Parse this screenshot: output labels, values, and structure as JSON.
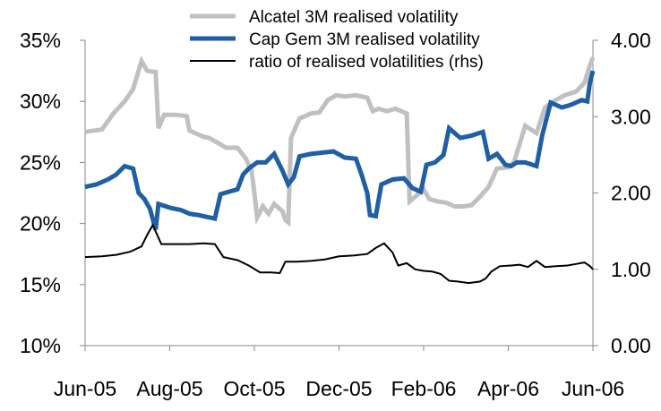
{
  "chart_data": {
    "type": "line",
    "x_ticks": [
      "Jun-05",
      "Aug-05",
      "Oct-05",
      "Dec-05",
      "Feb-06",
      "Apr-06",
      "Jun-06"
    ],
    "left_axis": {
      "ylim": [
        0.1,
        0.35
      ],
      "ticks": [
        0.1,
        0.15,
        0.2,
        0.25,
        0.3,
        0.35
      ],
      "tick_labels": [
        "10%",
        "15%",
        "20%",
        "25%",
        "30%",
        "35%"
      ]
    },
    "right_axis": {
      "ylim": [
        0.0,
        4.0
      ],
      "ticks": [
        0.0,
        1.0,
        2.0,
        3.0,
        4.0
      ],
      "tick_labels": [
        "0.00",
        "1.00",
        "2.00",
        "3.00",
        "4.00"
      ]
    },
    "grid": false,
    "legend_position": "top-center",
    "series": [
      {
        "name": "Alcatel 3M realised volatility",
        "axis": "left",
        "color": "#c0c0c0",
        "points": [
          [
            "Jun-05",
            0.275
          ],
          [
            0.3,
            0.277
          ],
          [
            0.5,
            0.29
          ],
          [
            0.7,
            0.3
          ],
          [
            0.85,
            0.31
          ],
          [
            1.0,
            0.333
          ],
          [
            1.1,
            0.325
          ],
          [
            1.25,
            0.324
          ],
          [
            1.3,
            0.278
          ],
          [
            1.4,
            0.289
          ],
          [
            1.6,
            0.289
          ],
          [
            1.8,
            0.288
          ],
          [
            1.85,
            0.276
          ],
          [
            2.0,
            0.273
          ],
          [
            2.1,
            0.271
          ],
          [
            2.2,
            0.27
          ],
          [
            2.35,
            0.266
          ],
          [
            2.5,
            0.262
          ],
          [
            2.7,
            0.262
          ],
          [
            2.85,
            0.253
          ],
          [
            2.95,
            0.243
          ],
          [
            3.0,
            0.225
          ],
          [
            3.05,
            0.205
          ],
          [
            3.15,
            0.214
          ],
          [
            3.25,
            0.208
          ],
          [
            3.35,
            0.216
          ],
          [
            3.5,
            0.21
          ],
          [
            3.55,
            0.203
          ],
          [
            3.6,
            0.201
          ],
          [
            3.65,
            0.27
          ],
          [
            3.8,
            0.286
          ],
          [
            4.0,
            0.29
          ],
          [
            4.15,
            0.291
          ],
          [
            4.3,
            0.301
          ],
          [
            4.45,
            0.305
          ],
          [
            4.6,
            0.304
          ],
          [
            4.8,
            0.305
          ],
          [
            5.0,
            0.303
          ],
          [
            5.1,
            0.292
          ],
          [
            5.2,
            0.294
          ],
          [
            5.35,
            0.292
          ],
          [
            5.5,
            0.294
          ],
          [
            5.6,
            0.292
          ],
          [
            5.7,
            0.29
          ],
          [
            5.75,
            0.218
          ],
          [
            5.85,
            0.222
          ],
          [
            6.0,
            0.228
          ],
          [
            6.1,
            0.22
          ],
          [
            6.25,
            0.218
          ],
          [
            6.4,
            0.217
          ],
          [
            6.55,
            0.214
          ],
          [
            6.7,
            0.214
          ],
          [
            6.85,
            0.215
          ],
          [
            7.0,
            0.222
          ],
          [
            7.15,
            0.23
          ],
          [
            7.3,
            0.245
          ],
          [
            7.5,
            0.246
          ],
          [
            7.6,
            0.25
          ],
          [
            7.8,
            0.28
          ],
          [
            8.0,
            0.274
          ],
          [
            8.15,
            0.295
          ],
          [
            8.3,
            0.3
          ],
          [
            8.5,
            0.305
          ],
          [
            8.7,
            0.308
          ],
          [
            8.85,
            0.315
          ],
          [
            8.95,
            0.33
          ],
          [
            9.0,
            0.336
          ]
        ]
      },
      {
        "name": "Cap Gem 3M realised volatility",
        "axis": "left",
        "color": "#1f5fa6",
        "points": [
          [
            "Jun-05",
            0.23
          ],
          [
            0.2,
            0.232
          ],
          [
            0.4,
            0.236
          ],
          [
            0.55,
            0.24
          ],
          [
            0.7,
            0.247
          ],
          [
            0.85,
            0.245
          ],
          [
            0.95,
            0.225
          ],
          [
            1.05,
            0.22
          ],
          [
            1.15,
            0.212
          ],
          [
            1.25,
            0.195
          ],
          [
            1.3,
            0.216
          ],
          [
            1.5,
            0.213
          ],
          [
            1.7,
            0.211
          ],
          [
            1.85,
            0.208
          ],
          [
            2.0,
            0.207
          ],
          [
            2.2,
            0.205
          ],
          [
            2.3,
            0.204
          ],
          [
            2.4,
            0.224
          ],
          [
            2.55,
            0.226
          ],
          [
            2.7,
            0.228
          ],
          [
            2.8,
            0.24
          ],
          [
            2.9,
            0.245
          ],
          [
            3.05,
            0.25
          ],
          [
            3.2,
            0.25
          ],
          [
            3.35,
            0.257
          ],
          [
            3.5,
            0.243
          ],
          [
            3.6,
            0.232
          ],
          [
            3.7,
            0.238
          ],
          [
            3.8,
            0.255
          ],
          [
            4.0,
            0.257
          ],
          [
            4.2,
            0.258
          ],
          [
            4.4,
            0.259
          ],
          [
            4.6,
            0.254
          ],
          [
            4.8,
            0.253
          ],
          [
            4.9,
            0.24
          ],
          [
            5.0,
            0.225
          ],
          [
            5.05,
            0.207
          ],
          [
            5.15,
            0.206
          ],
          [
            5.25,
            0.232
          ],
          [
            5.45,
            0.236
          ],
          [
            5.65,
            0.237
          ],
          [
            5.8,
            0.229
          ],
          [
            5.95,
            0.226
          ],
          [
            6.05,
            0.248
          ],
          [
            6.2,
            0.25
          ],
          [
            6.35,
            0.256
          ],
          [
            6.45,
            0.278
          ],
          [
            6.65,
            0.27
          ],
          [
            6.85,
            0.272
          ],
          [
            7.05,
            0.275
          ],
          [
            7.15,
            0.253
          ],
          [
            7.3,
            0.257
          ],
          [
            7.45,
            0.248
          ],
          [
            7.55,
            0.247
          ],
          [
            7.65,
            0.25
          ],
          [
            7.8,
            0.25
          ],
          [
            8.0,
            0.247
          ],
          [
            8.1,
            0.272
          ],
          [
            8.25,
            0.299
          ],
          [
            8.45,
            0.295
          ],
          [
            8.6,
            0.297
          ],
          [
            8.8,
            0.301
          ],
          [
            8.9,
            0.3
          ],
          [
            8.95,
            0.316
          ],
          [
            9.0,
            0.325
          ]
        ]
      },
      {
        "name": "ratio of realised volatilities (rhs)",
        "axis": "right",
        "color": "#000000",
        "points": [
          [
            "Jun-05",
            1.16
          ],
          [
            0.3,
            1.17
          ],
          [
            0.55,
            1.19
          ],
          [
            0.8,
            1.23
          ],
          [
            1.0,
            1.3
          ],
          [
            1.1,
            1.45
          ],
          [
            1.2,
            1.58
          ],
          [
            1.35,
            1.33
          ],
          [
            1.6,
            1.33
          ],
          [
            1.85,
            1.33
          ],
          [
            2.1,
            1.34
          ],
          [
            2.3,
            1.33
          ],
          [
            2.45,
            1.16
          ],
          [
            2.7,
            1.12
          ],
          [
            2.9,
            1.05
          ],
          [
            3.1,
            0.96
          ],
          [
            3.3,
            0.96
          ],
          [
            3.45,
            0.95
          ],
          [
            3.55,
            1.1
          ],
          [
            3.75,
            1.1
          ],
          [
            4.0,
            1.11
          ],
          [
            4.25,
            1.13
          ],
          [
            4.5,
            1.17
          ],
          [
            4.75,
            1.18
          ],
          [
            5.0,
            1.2
          ],
          [
            5.15,
            1.28
          ],
          [
            5.3,
            1.34
          ],
          [
            5.45,
            1.22
          ],
          [
            5.55,
            1.05
          ],
          [
            5.7,
            1.08
          ],
          [
            5.85,
            1.0
          ],
          [
            6.0,
            0.98
          ],
          [
            6.15,
            0.97
          ],
          [
            6.3,
            0.94
          ],
          [
            6.45,
            0.85
          ],
          [
            6.6,
            0.84
          ],
          [
            6.8,
            0.82
          ],
          [
            7.0,
            0.84
          ],
          [
            7.1,
            0.88
          ],
          [
            7.2,
            0.97
          ],
          [
            7.35,
            1.04
          ],
          [
            7.55,
            1.05
          ],
          [
            7.7,
            1.06
          ],
          [
            7.85,
            1.03
          ],
          [
            8.0,
            1.11
          ],
          [
            8.15,
            1.03
          ],
          [
            8.35,
            1.04
          ],
          [
            8.55,
            1.05
          ],
          [
            8.7,
            1.07
          ],
          [
            8.85,
            1.09
          ],
          [
            8.95,
            1.04
          ],
          [
            9.0,
            1.0
          ]
        ]
      }
    ]
  }
}
